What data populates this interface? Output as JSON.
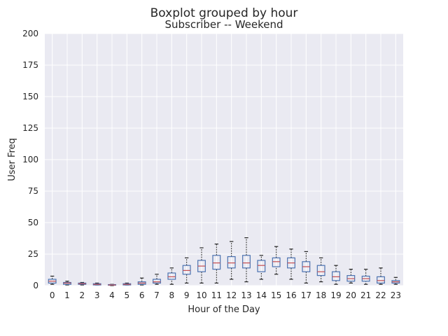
{
  "chart_data": {
    "type": "boxplot",
    "suptitle": "Boxplot grouped by hour",
    "title": "Subscriber -- Weekend",
    "xlabel": "Hour of the Day",
    "ylabel": "User Freq",
    "ylim": [
      0,
      200
    ],
    "yticks": [
      0,
      25,
      50,
      75,
      100,
      125,
      150,
      175,
      200
    ],
    "grid": true,
    "colors": {
      "background": "#EAEAF2",
      "grid": "#FFFFFF",
      "box": "#4C72B0",
      "median": "#C44E52",
      "whisker": "#262626"
    },
    "categories": [
      "0",
      "1",
      "2",
      "3",
      "4",
      "5",
      "6",
      "7",
      "8",
      "9",
      "10",
      "11",
      "12",
      "13",
      "14",
      "15",
      "16",
      "17",
      "18",
      "19",
      "20",
      "21",
      "22",
      "23"
    ],
    "boxes": [
      {
        "lo": 1,
        "q1": 2,
        "med": 3.5,
        "q3": 5,
        "hi": 7.5
      },
      {
        "lo": 0.5,
        "q1": 1,
        "med": 2,
        "q3": 2.5,
        "hi": 3.5
      },
      {
        "lo": 0.5,
        "q1": 1,
        "med": 1.5,
        "q3": 2,
        "hi": 2.5
      },
      {
        "lo": 0.5,
        "q1": 0.5,
        "med": 1,
        "q3": 1.5,
        "hi": 2
      },
      {
        "lo": 0,
        "q1": 0.3,
        "med": 0.5,
        "q3": 0.8,
        "hi": 1
      },
      {
        "lo": 0.5,
        "q1": 0.5,
        "med": 1,
        "q3": 1.5,
        "hi": 2
      },
      {
        "lo": 0.5,
        "q1": 1,
        "med": 2,
        "q3": 3,
        "hi": 6
      },
      {
        "lo": 1,
        "q1": 2,
        "med": 3,
        "q3": 5,
        "hi": 9
      },
      {
        "lo": 1,
        "q1": 5,
        "med": 7,
        "q3": 10,
        "hi": 14
      },
      {
        "lo": 2,
        "q1": 9,
        "med": 12,
        "q3": 16,
        "hi": 22
      },
      {
        "lo": 2,
        "q1": 11,
        "med": 15.5,
        "q3": 20,
        "hi": 30
      },
      {
        "lo": 2,
        "q1": 13,
        "med": 18,
        "q3": 24,
        "hi": 33
      },
      {
        "lo": 5,
        "q1": 14,
        "med": 18,
        "q3": 23,
        "hi": 35
      },
      {
        "lo": 3,
        "q1": 14,
        "med": 18,
        "q3": 24,
        "hi": 38
      },
      {
        "lo": 5,
        "q1": 11,
        "med": 16,
        "q3": 20,
        "hi": 24
      },
      {
        "lo": 9,
        "q1": 15,
        "med": 19,
        "q3": 22,
        "hi": 31
      },
      {
        "lo": 5,
        "q1": 14,
        "med": 18,
        "q3": 22,
        "hi": 29
      },
      {
        "lo": 2,
        "q1": 11,
        "med": 15,
        "q3": 19,
        "hi": 27
      },
      {
        "lo": 3,
        "q1": 8,
        "med": 11,
        "q3": 16,
        "hi": 22
      },
      {
        "lo": 1,
        "q1": 4,
        "med": 7,
        "q3": 11,
        "hi": 16
      },
      {
        "lo": 2,
        "q1": 3.5,
        "med": 5.5,
        "q3": 8,
        "hi": 13
      },
      {
        "lo": 1,
        "q1": 3.5,
        "med": 5.5,
        "q3": 7.5,
        "hi": 13
      },
      {
        "lo": 1,
        "q1": 2,
        "med": 4,
        "q3": 7,
        "hi": 14
      },
      {
        "lo": 1,
        "q1": 2,
        "med": 3,
        "q3": 4,
        "hi": 6.5
      }
    ]
  }
}
